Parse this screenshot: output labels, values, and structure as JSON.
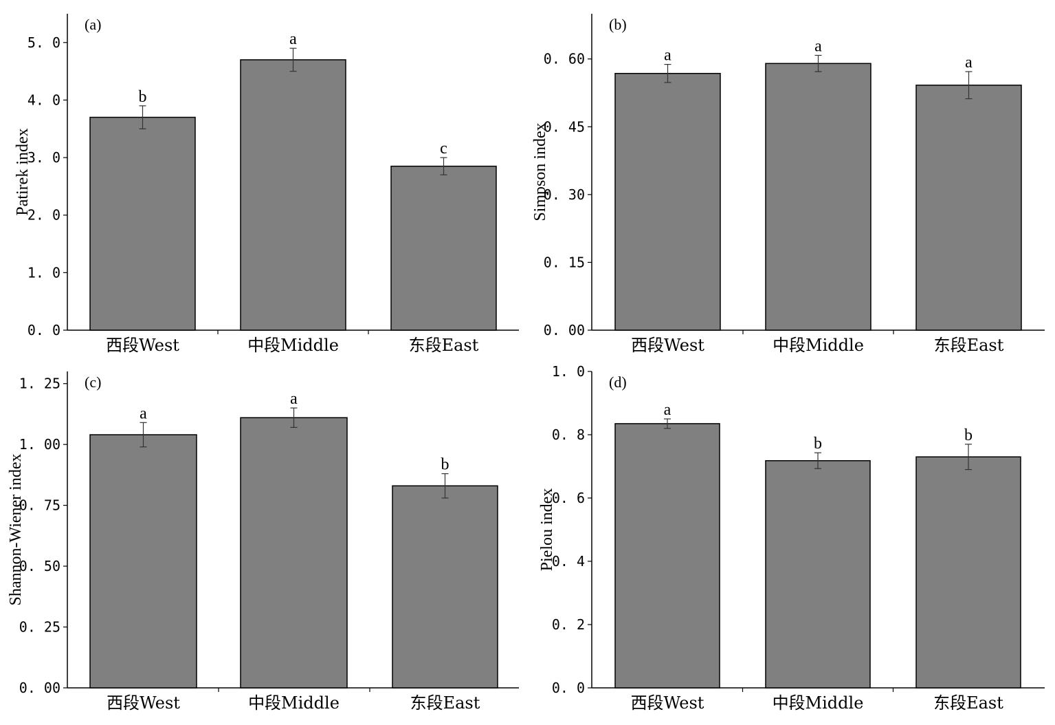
{
  "chart_data": [
    {
      "type": "bar",
      "panel_label": "(a)",
      "ylabel": "Patirek index",
      "categories": [
        "西段West",
        "中段Middle",
        "东段East"
      ],
      "values": [
        3.7,
        4.7,
        2.85
      ],
      "errors": [
        0.2,
        0.2,
        0.15
      ],
      "significance": [
        "b",
        "a",
        "c"
      ],
      "ylim": [
        0,
        5.5
      ],
      "yticks": [
        0,
        1,
        2,
        3,
        4,
        5
      ],
      "ytick_labels": [
        "0. 0",
        "1. 0",
        "2. 0",
        "3. 0",
        "4. 0",
        "5. 0"
      ]
    },
    {
      "type": "bar",
      "panel_label": "(b)",
      "ylabel": "Simpson index",
      "categories": [
        "西段West",
        "中段Middle",
        "东段East"
      ],
      "values": [
        0.568,
        0.59,
        0.542
      ],
      "errors": [
        0.02,
        0.018,
        0.03
      ],
      "significance": [
        "a",
        "a",
        "a"
      ],
      "ylim": [
        0,
        0.7
      ],
      "yticks": [
        0,
        0.15,
        0.3,
        0.45,
        0.6
      ],
      "ytick_labels": [
        "0. 00",
        "0. 15",
        "0. 30",
        "0. 45",
        "0. 60"
      ]
    },
    {
      "type": "bar",
      "panel_label": "(c)",
      "ylabel": "Shannon-Wiener index",
      "categories": [
        "西段West",
        "中段Middle",
        "东段East"
      ],
      "values": [
        1.04,
        1.11,
        0.83
      ],
      "errors": [
        0.05,
        0.04,
        0.05
      ],
      "significance": [
        "a",
        "a",
        "b"
      ],
      "ylim": [
        0,
        1.3
      ],
      "yticks": [
        0,
        0.25,
        0.5,
        0.75,
        1.0,
        1.25
      ],
      "ytick_labels": [
        "0. 00",
        "0. 25",
        "0. 50",
        "0. 75",
        "1. 00",
        "1. 25"
      ]
    },
    {
      "type": "bar",
      "panel_label": "(d)",
      "ylabel": "Pielou index",
      "categories": [
        "西段West",
        "中段Middle",
        "东段East"
      ],
      "values": [
        0.835,
        0.718,
        0.73
      ],
      "errors": [
        0.015,
        0.025,
        0.04
      ],
      "significance": [
        "a",
        "b",
        "b"
      ],
      "ylim": [
        0,
        1.0
      ],
      "yticks": [
        0,
        0.2,
        0.4,
        0.6,
        0.8,
        1.0
      ],
      "ytick_labels": [
        "0. 0",
        "0. 2",
        "0. 4",
        "0. 6",
        "0. 8",
        "1. 0"
      ]
    }
  ]
}
